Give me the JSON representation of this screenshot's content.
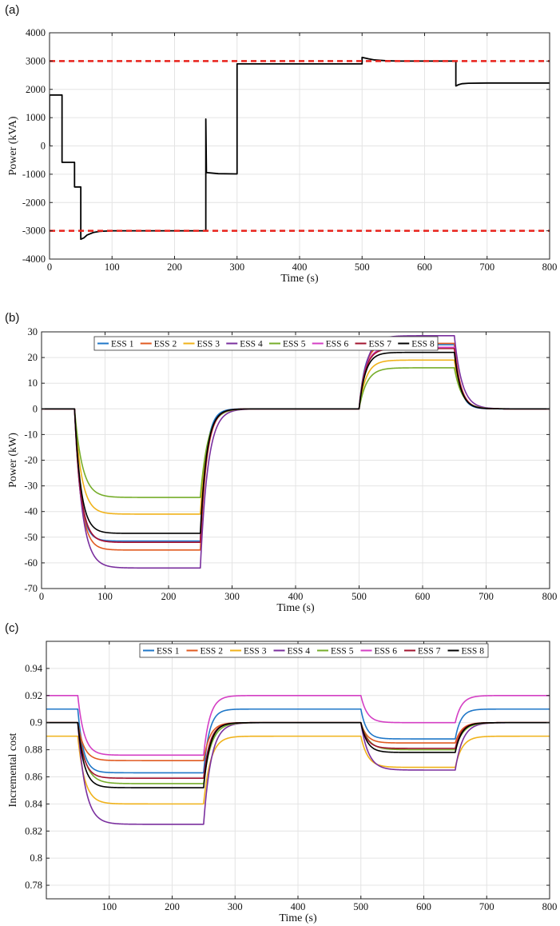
{
  "chart_data": [
    {
      "panel": "(a)",
      "type": "line",
      "xlabel": "Time (s)",
      "ylabel": "Power (kVA)",
      "xlim": [
        0,
        800
      ],
      "ylim": [
        -4000,
        4000
      ],
      "xticks": [
        0,
        100,
        200,
        300,
        400,
        500,
        600,
        700,
        800
      ],
      "yticks": [
        -4000,
        -3000,
        -2000,
        -1000,
        0,
        1000,
        2000,
        3000,
        4000
      ],
      "grid": true,
      "series": [
        {
          "color": "#000000",
          "style": "solid",
          "points": [
            [
              0,
              0
            ],
            [
              0,
              1800
            ],
            [
              20,
              1800
            ],
            [
              20,
              -580
            ],
            [
              40,
              -580
            ],
            [
              40,
              -1450
            ],
            [
              50,
              -1450
            ],
            [
              50,
              -3300
            ],
            [
              55,
              -3250
            ],
            [
              60,
              -3150
            ],
            [
              70,
              -3060
            ],
            [
              80,
              -3020
            ],
            [
              100,
              -3000
            ],
            [
              250,
              -3000
            ],
            [
              250,
              950
            ],
            [
              251,
              -940
            ],
            [
              270,
              -980
            ],
            [
              300,
              -990
            ],
            [
              300,
              2900
            ],
            [
              500,
              2900
            ],
            [
              500,
              3130
            ],
            [
              510,
              3080
            ],
            [
              520,
              3040
            ],
            [
              540,
              3010
            ],
            [
              560,
              3000
            ],
            [
              650,
              3000
            ],
            [
              650,
              2120
            ],
            [
              655,
              2170
            ],
            [
              660,
              2200
            ],
            [
              670,
              2215
            ],
            [
              700,
              2225
            ],
            [
              800,
              2225
            ]
          ]
        },
        {
          "color": "#e8201a",
          "style": "dashed",
          "points": [
            [
              0,
              3000
            ],
            [
              800,
              3000
            ]
          ]
        },
        {
          "color": "#e8201a",
          "style": "dashed",
          "points": [
            [
              0,
              -3000
            ],
            [
              800,
              -3000
            ]
          ]
        }
      ]
    },
    {
      "panel": "(b)",
      "type": "line",
      "xlabel": "Time (s)",
      "ylabel": "Power (kW)",
      "xlim": [
        0,
        800
      ],
      "ylim": [
        -70,
        30
      ],
      "xticks": [
        0,
        100,
        200,
        300,
        400,
        500,
        600,
        700,
        800
      ],
      "yticks": [
        -70,
        -60,
        -50,
        -40,
        -30,
        -20,
        -10,
        0,
        10,
        20,
        30
      ],
      "grid": true,
      "legend": "top",
      "segments": [
        {
          "t0": 0,
          "t1": 52,
          "base": "initial"
        },
        {
          "t0": 52,
          "t1": 250,
          "base": "level1"
        },
        {
          "t0": 250,
          "t1": 500,
          "base": "level2"
        },
        {
          "t0": 500,
          "t1": 650,
          "base": "level3"
        },
        {
          "t0": 650,
          "t1": 800,
          "base": "level4"
        }
      ],
      "series": [
        {
          "name": "ESS 1",
          "color": "#1f77c8",
          "initial": 0,
          "level1": -51.5,
          "level2": 0,
          "level3": 25,
          "level4": 0,
          "tau": 9
        },
        {
          "name": "ESS 2",
          "color": "#e05a20",
          "initial": 0,
          "level1": -55,
          "level2": 0,
          "level3": 25.5,
          "level4": 0,
          "tau": 10
        },
        {
          "name": "ESS 3",
          "color": "#f0b21a",
          "initial": 0,
          "level1": -41,
          "level2": 0,
          "level3": 19,
          "level4": 0,
          "tau": 11
        },
        {
          "name": "ESS 4",
          "color": "#7a2f9e",
          "initial": 0,
          "level1": -62,
          "level2": 0,
          "level3": 28.5,
          "level4": 0,
          "tau": 12
        },
        {
          "name": "ESS 5",
          "color": "#76ad2a",
          "initial": 0,
          "level1": -34.5,
          "level2": 0,
          "level3": 16,
          "level4": 0,
          "tau": 12
        },
        {
          "name": "ESS 6",
          "color": "#d43fc4",
          "initial": 0,
          "level1": -52,
          "level2": 0,
          "level3": 24,
          "level4": 0,
          "tau": 10
        },
        {
          "name": "ESS 7",
          "color": "#a2142f",
          "initial": 0,
          "level1": -52,
          "level2": 0,
          "level3": 23.5,
          "level4": 0,
          "tau": 10
        },
        {
          "name": "ESS 8",
          "color": "#000000",
          "initial": 0,
          "level1": -48.5,
          "level2": 0,
          "level3": 22,
          "level4": 0,
          "tau": 10
        }
      ]
    },
    {
      "panel": "(c)",
      "type": "line",
      "xlabel": "Time (s)",
      "ylabel": "Incremental cost",
      "xlim": [
        0,
        800
      ],
      "ylim": [
        0.77,
        0.96
      ],
      "xticks": [
        100,
        200,
        300,
        400,
        500,
        600,
        700,
        800
      ],
      "yticks": [
        0.78,
        0.8,
        0.82,
        0.84,
        0.86,
        0.88,
        0.9,
        0.92,
        0.94
      ],
      "grid": true,
      "legend": "top",
      "segments": [
        {
          "t0": 0,
          "t1": 50,
          "base": "initial"
        },
        {
          "t0": 50,
          "t1": 250,
          "base": "level1"
        },
        {
          "t0": 250,
          "t1": 500,
          "base": "level2"
        },
        {
          "t0": 500,
          "t1": 650,
          "base": "level3"
        },
        {
          "t0": 650,
          "t1": 800,
          "base": "level4"
        }
      ],
      "series": [
        {
          "name": "ESS 1",
          "color": "#1f77c8",
          "initial": 0.91,
          "level1": 0.863,
          "level2": 0.91,
          "level3": 0.888,
          "level4": 0.91,
          "tau": 9
        },
        {
          "name": "ESS 2",
          "color": "#e05a20",
          "initial": 0.9,
          "level1": 0.872,
          "level2": 0.9,
          "level3": 0.885,
          "level4": 0.9,
          "tau": 10
        },
        {
          "name": "ESS 3",
          "color": "#f0b21a",
          "initial": 0.89,
          "level1": 0.84,
          "level2": 0.89,
          "level3": 0.867,
          "level4": 0.89,
          "tau": 11
        },
        {
          "name": "ESS 4",
          "color": "#7a2f9e",
          "initial": 0.9,
          "level1": 0.825,
          "level2": 0.9,
          "level3": 0.865,
          "level4": 0.9,
          "tau": 12
        },
        {
          "name": "ESS 5",
          "color": "#76ad2a",
          "initial": 0.9,
          "level1": 0.855,
          "level2": 0.9,
          "level3": 0.88,
          "level4": 0.9,
          "tau": 12
        },
        {
          "name": "ESS 6",
          "color": "#d43fc4",
          "initial": 0.92,
          "level1": 0.876,
          "level2": 0.92,
          "level3": 0.9,
          "level4": 0.92,
          "tau": 10
        },
        {
          "name": "ESS 7",
          "color": "#a2142f",
          "initial": 0.9,
          "level1": 0.859,
          "level2": 0.9,
          "level3": 0.881,
          "level4": 0.9,
          "tau": 10
        },
        {
          "name": "ESS 8",
          "color": "#000000",
          "initial": 0.9,
          "level1": 0.852,
          "level2": 0.9,
          "level3": 0.878,
          "level4": 0.9,
          "tau": 10
        }
      ]
    }
  ]
}
